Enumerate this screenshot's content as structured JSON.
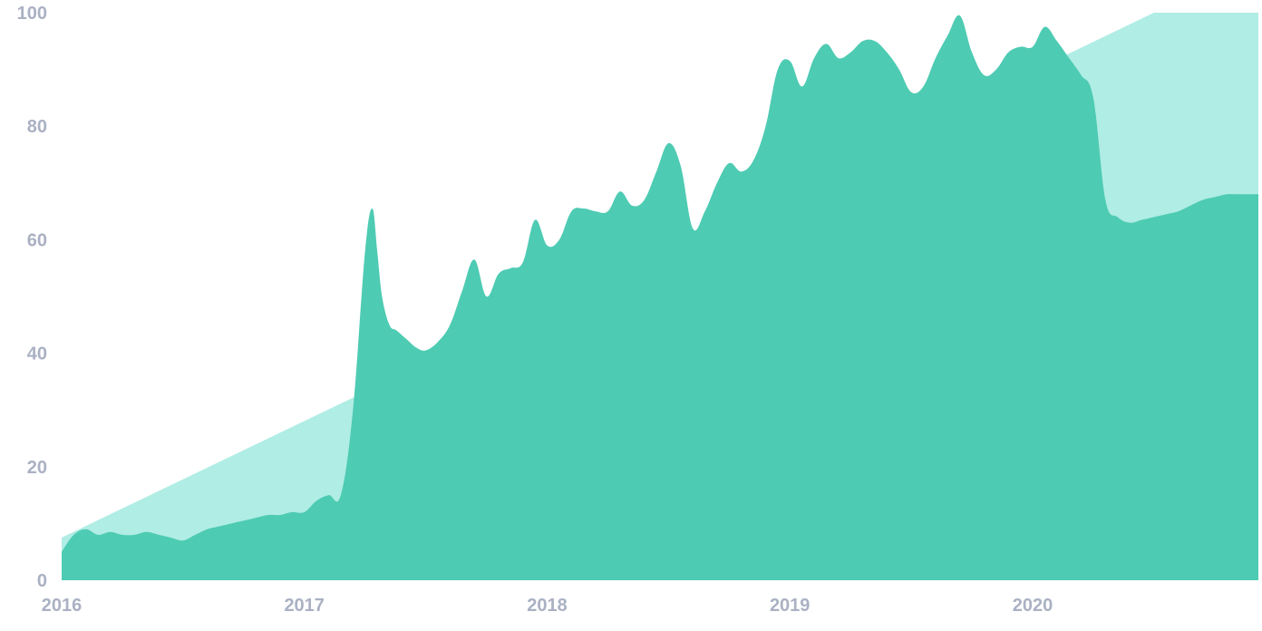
{
  "chart_data": {
    "type": "area",
    "title": "",
    "xlabel": "",
    "ylabel": "",
    "xlim": [
      2016.0,
      2020.93
    ],
    "ylim": [
      0,
      100
    ],
    "x_ticks": [
      "2016",
      "2017",
      "2018",
      "2019",
      "2020"
    ],
    "y_ticks": [
      "0",
      "20",
      "40",
      "60",
      "80",
      "100"
    ],
    "grid": false,
    "legend": "none",
    "colors": {
      "trend": "#b0ede4",
      "actual": "#4ecbb3",
      "tick_text": "#aab1c3"
    },
    "series": [
      {
        "style": "trend-area",
        "x": [
          2016.0,
          2020.5,
          2020.93
        ],
        "y": [
          7.5,
          100,
          100
        ]
      },
      {
        "style": "main-area",
        "x": [
          2016.0,
          2016.05,
          2016.1,
          2016.15,
          2016.2,
          2016.25,
          2016.3,
          2016.35,
          2016.4,
          2016.45,
          2016.5,
          2016.55,
          2016.6,
          2016.65,
          2016.7,
          2016.75,
          2016.8,
          2016.85,
          2016.9,
          2016.95,
          2017.0,
          2017.05,
          2017.1,
          2017.15,
          2017.2,
          2017.25,
          2017.28,
          2017.3,
          2017.32,
          2017.35,
          2017.38,
          2017.42,
          2017.46,
          2017.5,
          2017.55,
          2017.6,
          2017.65,
          2017.7,
          2017.75,
          2017.8,
          2017.85,
          2017.9,
          2017.95,
          2018.0,
          2018.05,
          2018.1,
          2018.15,
          2018.2,
          2018.25,
          2018.3,
          2018.35,
          2018.4,
          2018.45,
          2018.5,
          2018.55,
          2018.6,
          2018.65,
          2018.7,
          2018.75,
          2018.8,
          2018.85,
          2018.9,
          2018.95,
          2019.0,
          2019.05,
          2019.1,
          2019.15,
          2019.2,
          2019.25,
          2019.3,
          2019.35,
          2019.4,
          2019.45,
          2019.5,
          2019.55,
          2019.6,
          2019.65,
          2019.7,
          2019.75,
          2019.8,
          2019.85,
          2019.9,
          2019.95,
          2020.0,
          2020.05,
          2020.1,
          2020.15,
          2020.2,
          2020.25,
          2020.3,
          2020.35,
          2020.4,
          2020.45,
          2020.5,
          2020.55,
          2020.6,
          2020.65,
          2020.7,
          2020.75,
          2020.8,
          2020.85,
          2020.9,
          2020.93
        ],
        "y": [
          5,
          8,
          9,
          8,
          8.5,
          8,
          8,
          8.5,
          8,
          7.5,
          7,
          8,
          9,
          9.5,
          10,
          10.5,
          11,
          11.5,
          11.5,
          12,
          12,
          14,
          15,
          15,
          30,
          58,
          65.5,
          58,
          50,
          45,
          44,
          42.5,
          41,
          40.5,
          42,
          45,
          51,
          56.5,
          50,
          54,
          55,
          56,
          63.5,
          59,
          60,
          65,
          65.5,
          65,
          65,
          68.5,
          66,
          67,
          72,
          77,
          73,
          62,
          65,
          70,
          73.5,
          72,
          74,
          80,
          90,
          91.5,
          87,
          92,
          94.5,
          92,
          93,
          95,
          95,
          93,
          90,
          86,
          87,
          92,
          96,
          99.5,
          93,
          89,
          90,
          93,
          94,
          94,
          97.5,
          95,
          92,
          89,
          85,
          67,
          64,
          63,
          63.5,
          64,
          64.5,
          65,
          66,
          67,
          67.5,
          68,
          68,
          68,
          68
        ]
      }
    ]
  }
}
